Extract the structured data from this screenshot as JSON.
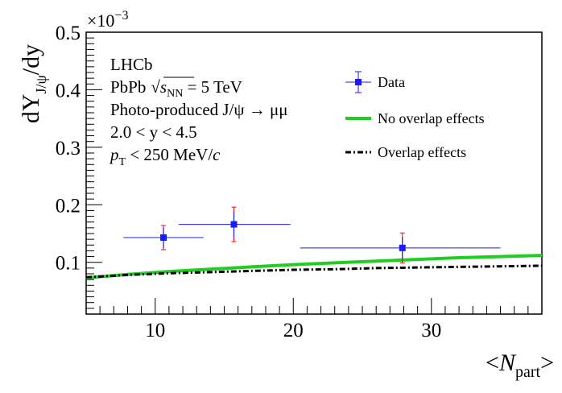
{
  "chart_data": {
    "type": "scatter",
    "title": "",
    "exponent_label": "×10",
    "exponent_value": "−3",
    "ylabel": {
      "main": "dY",
      "sub": "J/ψ",
      "tail": "/dy"
    },
    "xlabel": {
      "open": "<",
      "var": "N",
      "sub": "part",
      "close": ">"
    },
    "xlim": [
      5,
      38
    ],
    "ylim": [
      0.01,
      0.5
    ],
    "x_ticks": [
      10,
      20,
      30
    ],
    "x_tick_labels": [
      "10",
      "20",
      "30"
    ],
    "y_ticks": [
      0.1,
      0.2,
      0.3,
      0.4,
      0.5
    ],
    "y_tick_labels": [
      "0.1",
      "0.2",
      "0.3",
      "0.4",
      "0.5"
    ],
    "annotations": {
      "experiment": "LHCb",
      "system_prefix": "PbPb",
      "sqrt_symbol": "√",
      "s_var": "s",
      "s_sub": "NN",
      "energy": " = 5 TeV",
      "process": "Photo-produced J/ψ → μμ",
      "rapidity": "2.0 < y < 4.5",
      "pt_var": "p",
      "pt_sub": "T",
      "pt_cut": " < 250 MeV/",
      "pt_unit": "c"
    },
    "legend": {
      "placement": "top-right",
      "entries": [
        {
          "label": "Data",
          "style": "marker"
        },
        {
          "label": "No overlap effects",
          "style": "solid"
        },
        {
          "label": "Overlap effects",
          "style": "dashdot"
        }
      ]
    },
    "series": [
      {
        "name": "Data",
        "color": "#1a1aff",
        "syst_color": "#ff0000",
        "points": [
          {
            "x": 10.6,
            "y": 0.143,
            "xerr_low": 2.9,
            "xerr_high": 2.9,
            "stat_err": 0.018,
            "syst_err": 0.021
          },
          {
            "x": 15.7,
            "y": 0.166,
            "xerr_low": 4.0,
            "xerr_high": 4.1,
            "stat_err": 0.022,
            "syst_err": 0.03
          },
          {
            "x": 27.9,
            "y": 0.125,
            "xerr_low": 7.4,
            "xerr_high": 7.1,
            "stat_err": 0.019,
            "syst_err": 0.026
          }
        ]
      },
      {
        "name": "No overlap effects",
        "color": "#22cc22",
        "x": [
          5,
          8,
          11,
          14,
          17,
          20,
          23,
          26,
          29,
          32,
          35,
          38
        ],
        "y": [
          0.073,
          0.079,
          0.084,
          0.088,
          0.092,
          0.096,
          0.099,
          0.102,
          0.105,
          0.108,
          0.11,
          0.112
        ]
      },
      {
        "name": "Overlap effects",
        "color": "#000000",
        "x": [
          5,
          8,
          11,
          14,
          17,
          20,
          23,
          26,
          29,
          32,
          35,
          38
        ],
        "y": [
          0.074,
          0.078,
          0.081,
          0.083,
          0.085,
          0.087,
          0.088,
          0.09,
          0.091,
          0.092,
          0.093,
          0.094
        ]
      }
    ]
  }
}
